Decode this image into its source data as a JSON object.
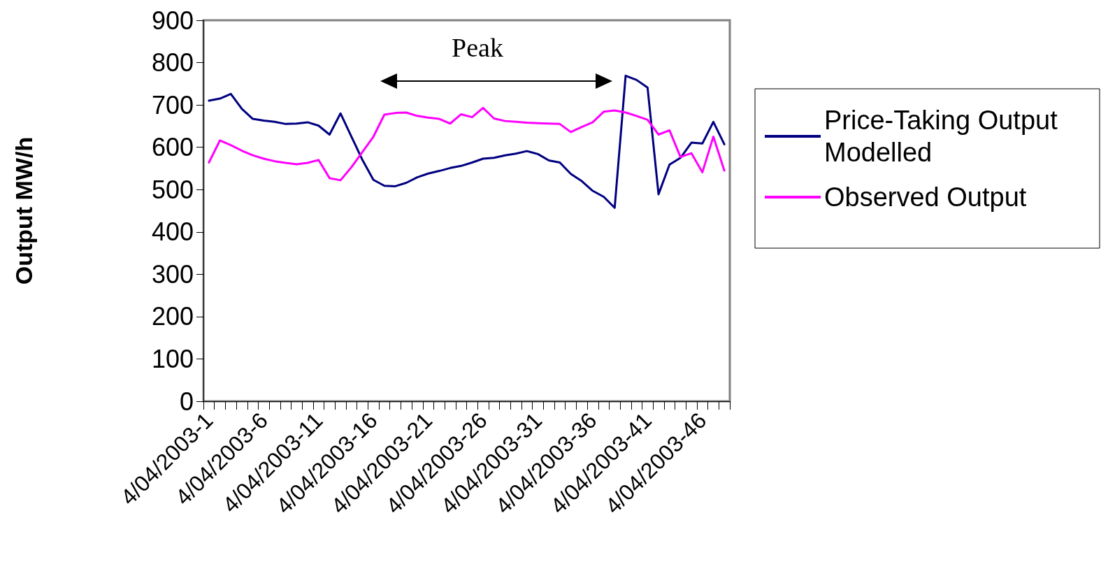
{
  "chart_data": {
    "type": "line",
    "ylabel": "Output MW/h",
    "categories": [
      "4/04/2003-1",
      null,
      null,
      null,
      null,
      "4/04/2003-6",
      null,
      null,
      null,
      null,
      "4/04/2003-11",
      null,
      null,
      null,
      null,
      "4/04/2003-16",
      null,
      null,
      null,
      null,
      "4/04/2003-21",
      null,
      null,
      null,
      null,
      "4/04/2003-26",
      null,
      null,
      null,
      null,
      "4/04/2003-31",
      null,
      null,
      null,
      null,
      "4/04/2003-36",
      null,
      null,
      null,
      null,
      "4/04/2003-41",
      null,
      null,
      null,
      null,
      "4/04/2003-46",
      null,
      null
    ],
    "series": [
      {
        "name": "Price-Taking Output Modelled",
        "color": "#000080",
        "values": [
          710,
          715,
          726,
          691,
          667,
          663,
          660,
          655,
          656,
          659,
          651,
          630,
          680,
          625,
          570,
          523,
          509,
          508,
          516,
          529,
          538,
          544,
          551,
          556,
          564,
          573,
          575,
          581,
          585,
          591,
          584,
          569,
          564,
          537,
          520,
          497,
          483,
          457,
          769,
          759,
          741,
          489,
          559,
          575,
          611,
          609,
          660,
          607
        ]
      },
      {
        "name": "Observed Output",
        "color": "#ff00ff",
        "values": [
          564,
          616,
          605,
          592,
          581,
          573,
          567,
          563,
          560,
          563,
          570,
          527,
          522,
          553,
          589,
          625,
          677,
          681,
          682,
          674,
          670,
          667,
          656,
          678,
          671,
          693,
          668,
          662,
          660,
          658,
          657,
          656,
          655,
          636,
          648,
          659,
          684,
          687,
          682,
          674,
          665,
          630,
          640,
          577,
          586,
          541,
          625,
          545
        ]
      }
    ],
    "ylim": [
      0,
      900
    ],
    "yticks": [
      0,
      100,
      200,
      300,
      400,
      500,
      600,
      700,
      800,
      900
    ],
    "annotations": [
      "Peak"
    ],
    "legend": "right",
    "marker": "none",
    "line_style": "solid"
  }
}
